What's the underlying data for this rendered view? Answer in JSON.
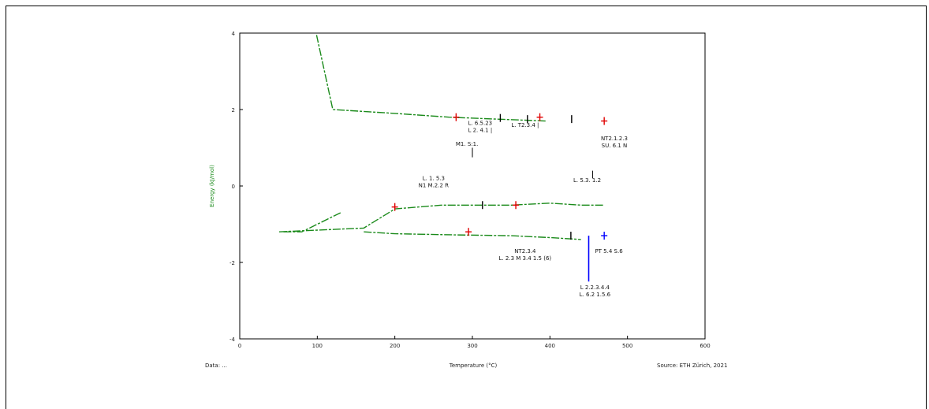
{
  "chart_data": {
    "type": "line",
    "title": "",
    "xlabel": "Temperature (°C)",
    "ylabel": "Energy (kJ/mol)",
    "xlim": [
      0,
      600
    ],
    "ylim": [
      -4,
      4
    ],
    "x_ticks": [
      0,
      100,
      200,
      300,
      400,
      500,
      600
    ],
    "y_ticks": [
      -4,
      -2,
      0,
      2,
      4
    ],
    "grid": false,
    "colors": {
      "curve": "#1a8a1a",
      "red_marker": "#e00000",
      "blue_marker": "#0000ff",
      "black_marker": "#000000",
      "ylabel": "#1a8a1a"
    },
    "series": [
      {
        "x": [
          99,
          120,
          200,
          270,
          330,
          370,
          395
        ],
        "y": [
          3.95,
          2.0,
          1.9,
          1.8,
          1.75,
          1.72,
          1.7
        ]
      },
      {
        "x": [
          130,
          80,
          50,
          160,
          200,
          260,
          350,
          400,
          440,
          470
        ],
        "y": [
          -0.7,
          -1.2,
          -1.2,
          -1.1,
          -0.6,
          -0.5,
          -0.5,
          -0.45,
          -0.5,
          -0.5
        ]
      },
      {
        "x": [
          160,
          200,
          280,
          350,
          400,
          440
        ],
        "y": [
          -1.2,
          -1.25,
          -1.28,
          -1.3,
          -1.35,
          -1.4
        ]
      }
    ],
    "markers": [
      {
        "x": 279,
        "y": 1.8,
        "color": "red"
      },
      {
        "x": 336,
        "y": 1.78,
        "color": "black"
      },
      {
        "x": 371,
        "y": 1.75,
        "color": "black"
      },
      {
        "x": 387,
        "y": 1.8,
        "color": "red"
      },
      {
        "x": 428,
        "y": 1.75,
        "color": "black"
      },
      {
        "x": 470,
        "y": 1.7,
        "color": "red"
      },
      {
        "x": 200,
        "y": -0.55,
        "color": "red"
      },
      {
        "x": 313,
        "y": -0.5,
        "color": "black"
      },
      {
        "x": 356,
        "y": -0.5,
        "color": "red"
      },
      {
        "x": 295,
        "y": -1.2,
        "color": "red"
      },
      {
        "x": 427,
        "y": -1.3,
        "color": "black"
      },
      {
        "x": 470,
        "y": -1.3,
        "color": "blue"
      }
    ],
    "labels": [
      {
        "lines": [
          "L. 6.5.23",
          "L 2. 4.1 |"
        ],
        "x": 310,
        "y": 1.6
      },
      {
        "lines": [
          "L. T2.3.4 |"
        ],
        "x": 368,
        "y": 1.55
      },
      {
        "lines": [
          "NT2.1.2.3",
          "SU. 6.1 N"
        ],
        "x": 483,
        "y": 1.2
      },
      {
        "lines": [
          "M1. S:1."
        ],
        "x": 293,
        "y": 1.05
      },
      {
        "lines": [
          "L. 1. 5.3",
          "N1 M.2.2 R"
        ],
        "x": 250,
        "y": 0.15
      },
      {
        "lines": [
          "L. 5.3. 1.2"
        ],
        "x": 448,
        "y": 0.1
      },
      {
        "lines": [
          "NT2.3.4",
          "L. 2.3 M 3.4 1.5 (6)"
        ],
        "x": 368,
        "y": -1.75
      },
      {
        "lines": [
          "PT 5.4 S.6"
        ],
        "x": 476,
        "y": -1.75
      },
      {
        "lines": [
          "L 2.2.3.4.4",
          "L. 6.2 1.5.6"
        ],
        "x": 458,
        "y": -2.7
      }
    ],
    "footer": {
      "left": "Data: ...",
      "center": "Temperature (°C)",
      "right": "Source: ETH Zürich, 2021"
    }
  }
}
